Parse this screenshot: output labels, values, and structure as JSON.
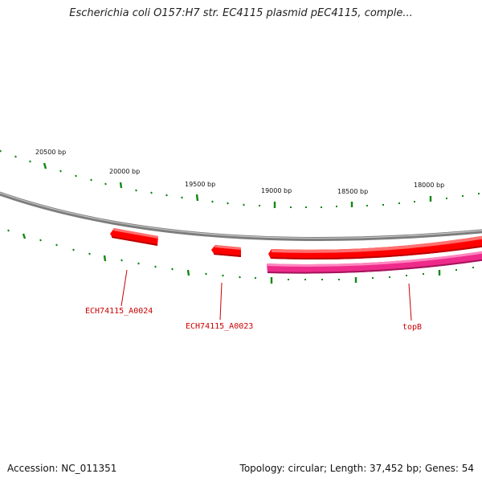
{
  "title": "Escherichia coli O157:H7 str. EC4115 plasmid pEC4115, comple...",
  "footer": {
    "accession_label": "Accession: NC_011351",
    "summary_label": "Topology: circular; Length: 37,452 bp; Genes: 54"
  },
  "scale_labels": [
    "20500 bp",
    "20000 bp",
    "19500 bp",
    "19000 bp",
    "18500 bp",
    "18000 bp"
  ],
  "genes": [
    {
      "name": "ECH74115_A0024",
      "strand": "forward",
      "color": "#ff0000"
    },
    {
      "name": "ECH74115_A0023",
      "strand": "forward",
      "color": "#ff0000"
    },
    {
      "name": "topB",
      "strand": "reverse",
      "color": "#ee2b8b"
    }
  ],
  "colors": {
    "backbone": "#8a8a8a",
    "tick": "#118811",
    "gene_forward": "#ff0000",
    "gene_reverse": "#ee2b8b",
    "label": "#cc0000"
  }
}
